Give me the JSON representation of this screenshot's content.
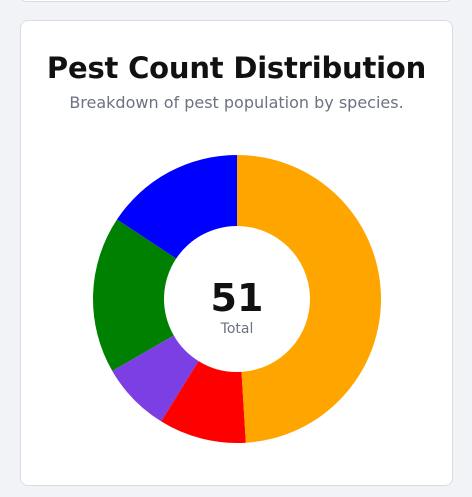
{
  "header": {
    "title": "Pest Count Distribution",
    "subtitle": "Breakdown of pest population by species."
  },
  "center": {
    "value": "51",
    "label": "Total"
  },
  "chart_data": {
    "type": "pie",
    "donut": true,
    "title": "Pest Count Distribution",
    "subtitle": "Breakdown of pest population by species.",
    "total": 51,
    "values": [
      8,
      9,
      4,
      5,
      25
    ],
    "colors": [
      "#0000ff",
      "#008000",
      "#7b3fe4",
      "#ff0000",
      "#ffa500"
    ],
    "start_angle_deg": 90,
    "direction": "counterclockwise",
    "legend": "none"
  }
}
